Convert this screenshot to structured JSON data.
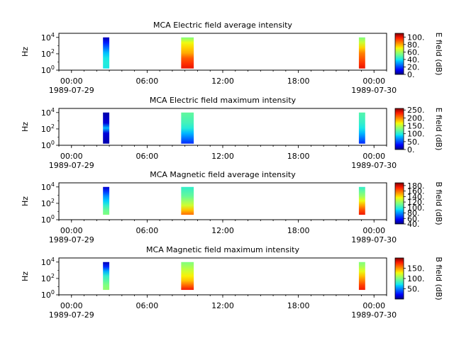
{
  "chart_data": [
    {
      "type": "heatmap",
      "title": "MCA  Electric field average intensity",
      "ylabel": "Hz",
      "yscale": "log",
      "ylim_exp": [
        0,
        4.5
      ],
      "yticks": [
        {
          "base": "10",
          "exp": "0"
        },
        {
          "base": "10",
          "exp": "2"
        },
        {
          "base": "10",
          "exp": "4"
        }
      ],
      "xlim_hours": [
        -1,
        25
      ],
      "xticks": [
        {
          "hour": 0,
          "time": "00:00",
          "date": "1989-07-29"
        },
        {
          "hour": 6,
          "time": "06:00",
          "date": ""
        },
        {
          "hour": 12,
          "time": "12:00",
          "date": ""
        },
        {
          "hour": 18,
          "time": "18:00",
          "date": ""
        },
        {
          "hour": 24,
          "time": "00:00",
          "date": "1989-07-30"
        }
      ],
      "colorbar": {
        "label": "E field (dB)",
        "range": [
          0,
          110
        ],
        "ticks": [
          "0.",
          "20.",
          "40.",
          "60.",
          "80.",
          "100."
        ],
        "tick_values": [
          0,
          20,
          40,
          60,
          80,
          100
        ]
      },
      "segments": [
        {
          "start_hour": 2.5,
          "end_hour": 3.0,
          "top_exp": 4.0,
          "bottom_exp": 0.2,
          "values": [
            5,
            15,
            25,
            35,
            40,
            42,
            40
          ]
        },
        {
          "start_hour": 8.7,
          "end_hour": 9.7,
          "top_exp": 4.0,
          "bottom_exp": 0.2,
          "values": [
            55,
            70,
            75,
            80,
            90,
            95,
            100
          ]
        },
        {
          "start_hour": 22.8,
          "end_hour": 23.3,
          "top_exp": 4.0,
          "bottom_exp": 0.2,
          "values": [
            55,
            65,
            75,
            85,
            90,
            95,
            100
          ]
        }
      ]
    },
    {
      "type": "heatmap",
      "title": "MCA  Electric field maximum intensity",
      "ylabel": "Hz",
      "yscale": "log",
      "ylim_exp": [
        0,
        4.5
      ],
      "yticks": [
        {
          "base": "10",
          "exp": "0"
        },
        {
          "base": "10",
          "exp": "2"
        },
        {
          "base": "10",
          "exp": "4"
        }
      ],
      "xlim_hours": [
        -1,
        25
      ],
      "xticks": [
        {
          "hour": 0,
          "time": "00:00",
          "date": "1989-07-29"
        },
        {
          "hour": 6,
          "time": "06:00",
          "date": ""
        },
        {
          "hour": 12,
          "time": "12:00",
          "date": ""
        },
        {
          "hour": 18,
          "time": "18:00",
          "date": ""
        },
        {
          "hour": 24,
          "time": "00:00",
          "date": "1989-07-30"
        }
      ],
      "colorbar": {
        "label": "E field (dB)",
        "range": [
          0,
          260
        ],
        "ticks": [
          "0.",
          "50.",
          "100.",
          "150.",
          "200.",
          "250."
        ],
        "tick_values": [
          0,
          50,
          100,
          150,
          200,
          250
        ]
      },
      "segments": [
        {
          "start_hour": 2.5,
          "end_hour": 3.0,
          "top_exp": 4.0,
          "bottom_exp": 0.2,
          "values": [
            10,
            15,
            20,
            80,
            20,
            15,
            10
          ]
        },
        {
          "start_hour": 8.7,
          "end_hour": 9.7,
          "top_exp": 4.0,
          "bottom_exp": 0.2,
          "values": [
            120,
            115,
            110,
            100,
            80,
            60,
            40
          ]
        },
        {
          "start_hour": 22.8,
          "end_hour": 23.3,
          "top_exp": 4.0,
          "bottom_exp": 0.2,
          "values": [
            115,
            110,
            105,
            95,
            80,
            60,
            40
          ]
        }
      ]
    },
    {
      "type": "heatmap",
      "title": "MCA  Magnetic field average intensity",
      "ylabel": "Hz",
      "yscale": "log",
      "ylim_exp": [
        0,
        4.5
      ],
      "yticks": [
        {
          "base": "10",
          "exp": "0"
        },
        {
          "base": "10",
          "exp": "2"
        },
        {
          "base": "10",
          "exp": "4"
        }
      ],
      "xlim_hours": [
        -1,
        25
      ],
      "xticks": [
        {
          "hour": 0,
          "time": "00:00",
          "date": "1989-07-29"
        },
        {
          "hour": 6,
          "time": "06:00",
          "date": ""
        },
        {
          "hour": 12,
          "time": "12:00",
          "date": ""
        },
        {
          "hour": 18,
          "time": "18:00",
          "date": ""
        },
        {
          "hour": 24,
          "time": "00:00",
          "date": "1989-07-30"
        }
      ],
      "colorbar": {
        "label": "B field (dB)",
        "range": [
          40,
          190
        ],
        "ticks": [
          "40.",
          "60.",
          "80.",
          "100.",
          "120.",
          "140.",
          "160.",
          "180."
        ],
        "tick_values": [
          40,
          60,
          80,
          100,
          120,
          140,
          160,
          180
        ]
      },
      "segments": [
        {
          "start_hour": 2.5,
          "end_hour": 3.0,
          "top_exp": 4.0,
          "bottom_exp": 0.6,
          "values": [
            50,
            65,
            80,
            90,
            100,
            110,
            115
          ]
        },
        {
          "start_hour": 8.7,
          "end_hour": 9.7,
          "top_exp": 4.0,
          "bottom_exp": 0.6,
          "values": [
            100,
            105,
            110,
            120,
            130,
            145,
            160
          ]
        },
        {
          "start_hour": 22.8,
          "end_hour": 23.3,
          "top_exp": 4.0,
          "bottom_exp": 0.6,
          "values": [
            100,
            110,
            120,
            135,
            150,
            165,
            175
          ]
        }
      ]
    },
    {
      "type": "heatmap",
      "title": "MCA  Magnetic field maximum intensity",
      "ylabel": "Hz",
      "yscale": "log",
      "ylim_exp": [
        0,
        4.5
      ],
      "yticks": [
        {
          "base": "10",
          "exp": "0"
        },
        {
          "base": "10",
          "exp": "2"
        },
        {
          "base": "10",
          "exp": "4"
        }
      ],
      "xlim_hours": [
        -1,
        25
      ],
      "xticks": [
        {
          "hour": 0,
          "time": "00:00",
          "date": "1989-07-29"
        },
        {
          "hour": 6,
          "time": "06:00",
          "date": ""
        },
        {
          "hour": 12,
          "time": "12:00",
          "date": ""
        },
        {
          "hour": 18,
          "time": "18:00",
          "date": ""
        },
        {
          "hour": 24,
          "time": "00:00",
          "date": "1989-07-30"
        }
      ],
      "colorbar": {
        "label": "B field (dB)",
        "range": [
          0,
          200
        ],
        "ticks": [
          "50.",
          "100.",
          "150."
        ],
        "tick_values": [
          50,
          100,
          150
        ]
      },
      "segments": [
        {
          "start_hour": 2.5,
          "end_hour": 3.0,
          "top_exp": 4.0,
          "bottom_exp": 0.6,
          "values": [
            10,
            30,
            60,
            80,
            90,
            100,
            105
          ]
        },
        {
          "start_hour": 8.7,
          "end_hour": 9.7,
          "top_exp": 4.0,
          "bottom_exp": 0.6,
          "values": [
            100,
            110,
            120,
            130,
            140,
            160,
            180
          ]
        },
        {
          "start_hour": 22.8,
          "end_hour": 23.3,
          "top_exp": 4.0,
          "bottom_exp": 0.6,
          "values": [
            100,
            110,
            125,
            140,
            155,
            170,
            180
          ]
        }
      ]
    }
  ]
}
